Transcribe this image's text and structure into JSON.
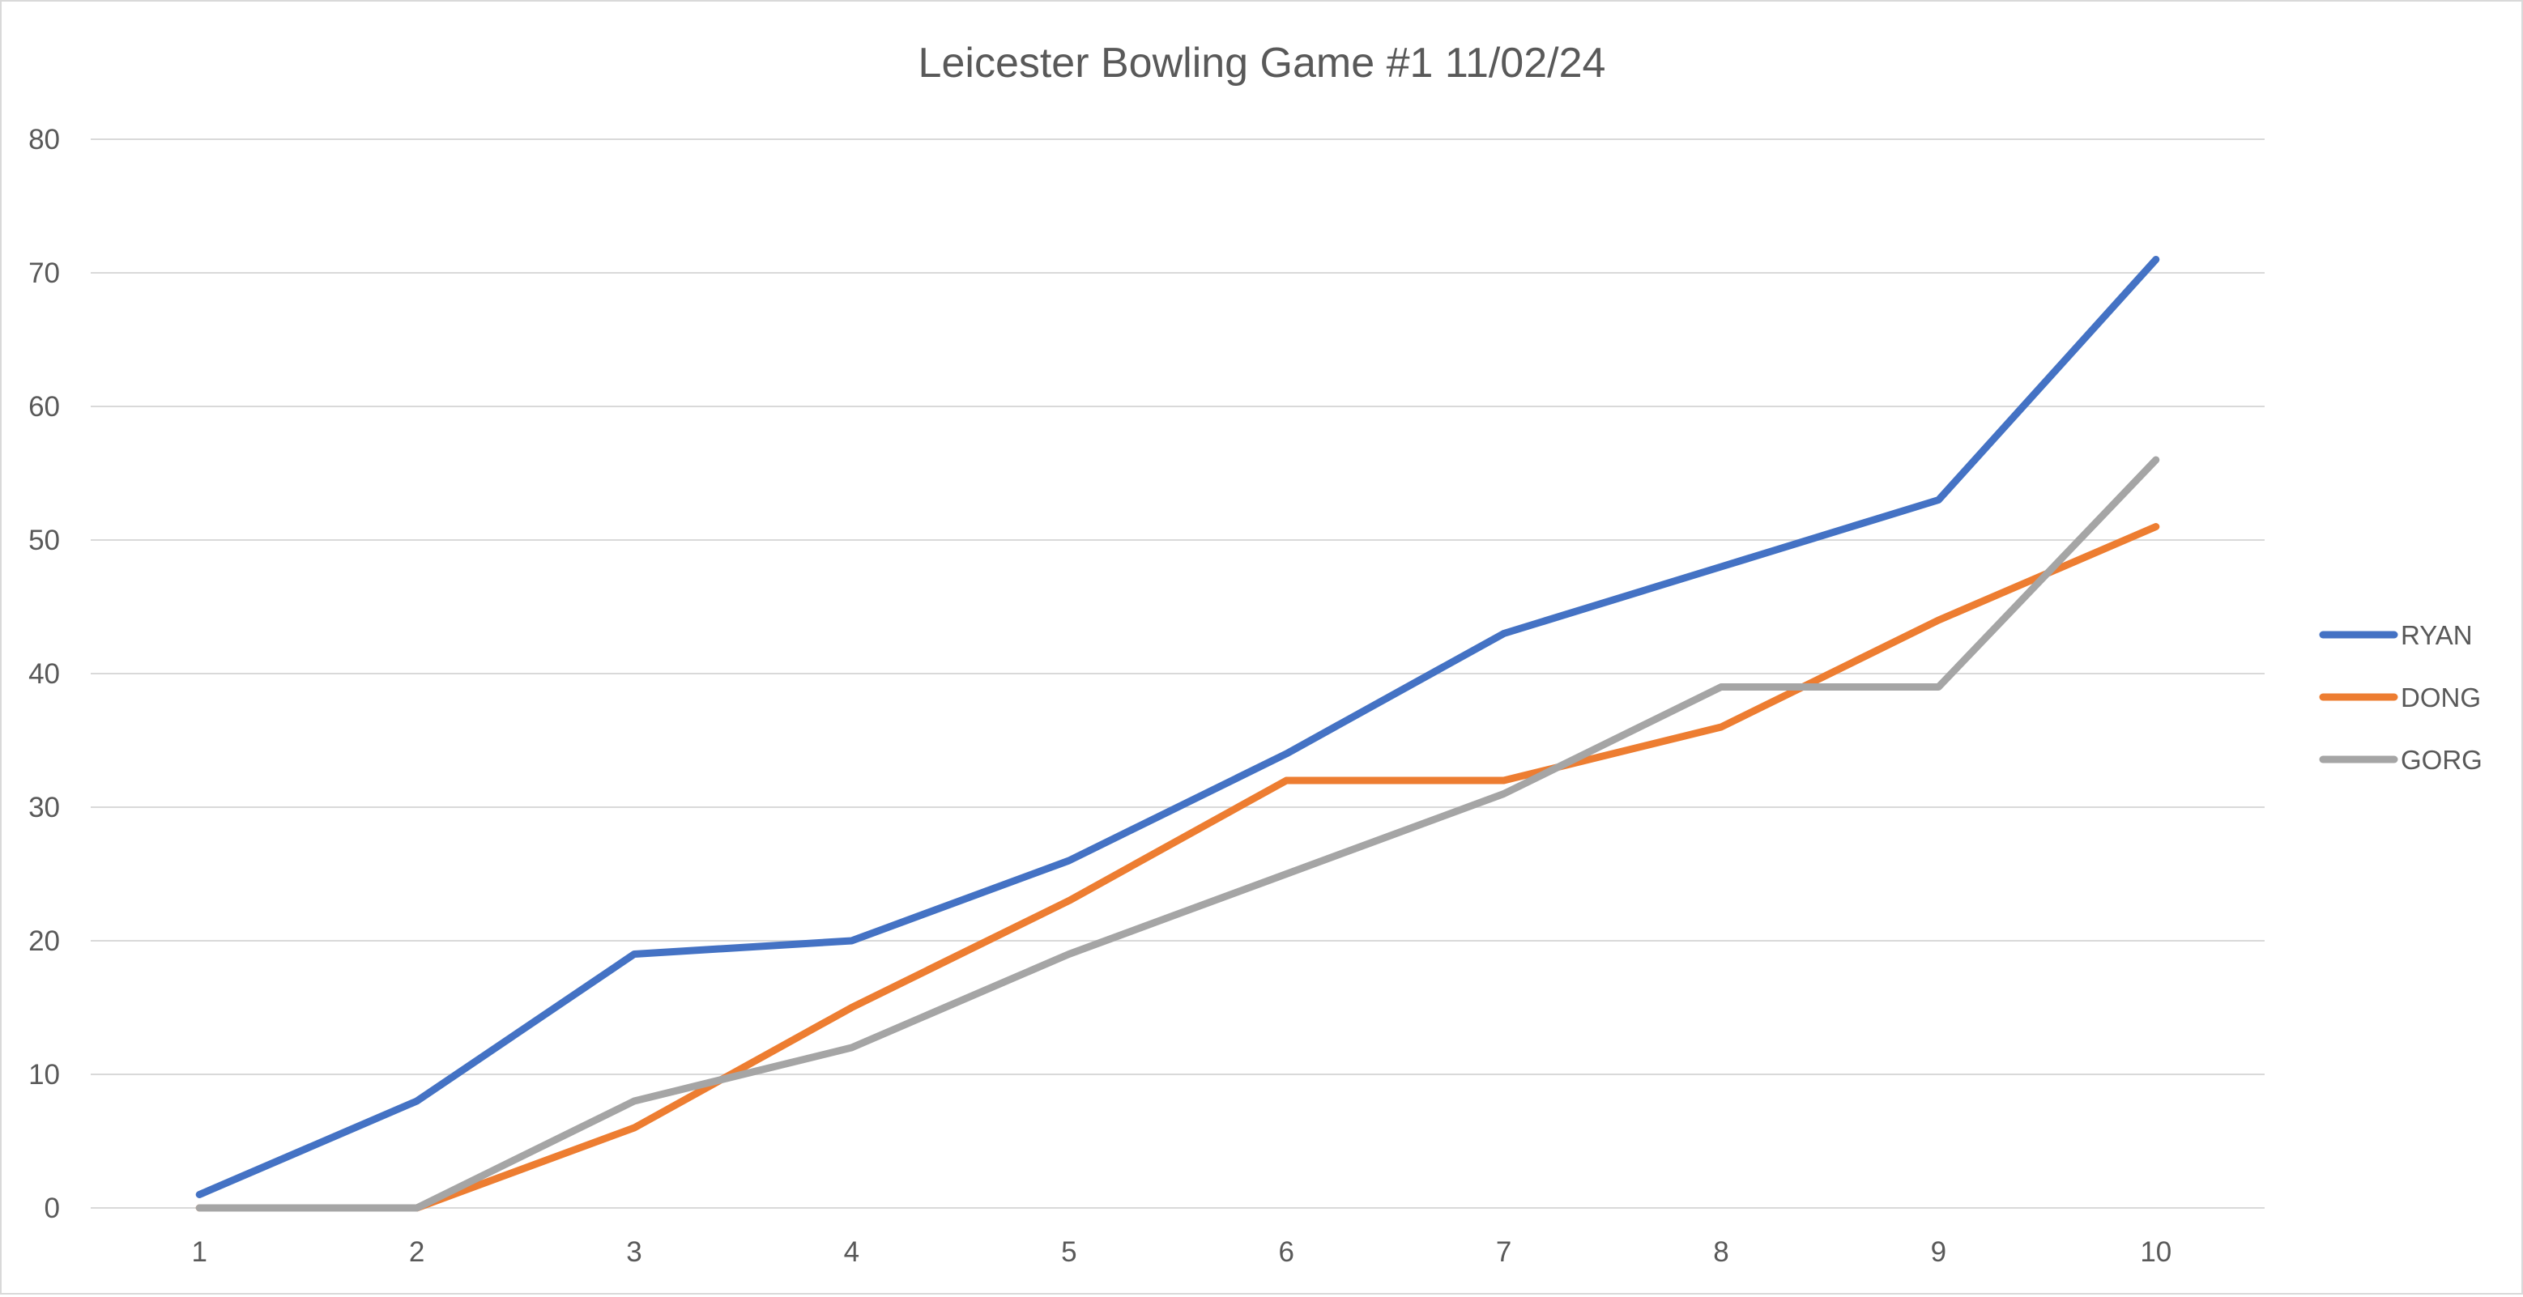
{
  "chart_data": {
    "type": "line",
    "title": "Leicester Bowling Game #1 11/02/24",
    "xlabel": "",
    "ylabel": "",
    "categories": [
      "1",
      "2",
      "3",
      "4",
      "5",
      "6",
      "7",
      "8",
      "9",
      "10"
    ],
    "yticks": [
      "0",
      "10",
      "20",
      "30",
      "40",
      "50",
      "60",
      "70",
      "80"
    ],
    "ylim": [
      0,
      80
    ],
    "grid": true,
    "legend_position": "right",
    "series": [
      {
        "name": "RYAN",
        "color": "#4472C4",
        "values": [
          1,
          8,
          19,
          20,
          26,
          34,
          43,
          48,
          53,
          71
        ]
      },
      {
        "name": "DONG",
        "color": "#ED7D31",
        "values": [
          0,
          0,
          6,
          15,
          23,
          32,
          32,
          36,
          44,
          51
        ]
      },
      {
        "name": "GORG",
        "color": "#A5A5A5",
        "values": [
          0,
          0,
          8,
          12,
          19,
          25,
          31,
          39,
          39,
          56
        ]
      }
    ]
  }
}
